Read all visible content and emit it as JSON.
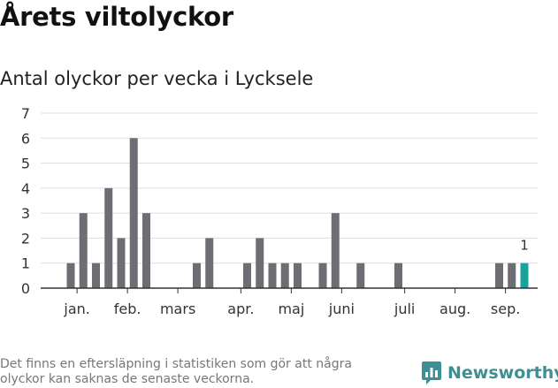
{
  "title": "Årets viltolyckor",
  "subtitle": "Antal olyckor per vecka i Lycksele",
  "footnote": "Det finns en eftersläpning i statistiken som gör att några olyckor kan saknas de senaste veckorna.",
  "brand": {
    "name": "Newsworthy",
    "icon": "newsworthy-logo-icon"
  },
  "colors": {
    "bar": "#6e6d74",
    "highlight": "#1aa39a",
    "grid": "#dddddd",
    "axis": "#333333",
    "text": "#333333"
  },
  "chart_data": {
    "type": "bar",
    "title": "Antal olyckor per vecka i Lycksele",
    "xlabel": "",
    "ylabel": "",
    "ylim": [
      0,
      7
    ],
    "yticks": [
      0,
      1,
      2,
      3,
      4,
      5,
      6,
      7
    ],
    "grid": true,
    "weeks": [
      1,
      2,
      3,
      4,
      5,
      6,
      7,
      8,
      9,
      10,
      11,
      12,
      13,
      14,
      15,
      16,
      17,
      18,
      19,
      20,
      21,
      22,
      23,
      24,
      25,
      26,
      27,
      28,
      29,
      30,
      31,
      32,
      33,
      34,
      35,
      36,
      37,
      38
    ],
    "values": [
      1,
      3,
      1,
      4,
      2,
      6,
      3,
      0,
      0,
      0,
      1,
      2,
      0,
      0,
      1,
      2,
      1,
      1,
      1,
      0,
      1,
      3,
      0,
      1,
      0,
      0,
      1,
      0,
      0,
      0,
      0,
      0,
      0,
      0,
      1,
      1,
      1,
      0
    ],
    "highlight_week": 37,
    "highlight_label": "1",
    "month_labels": [
      {
        "label": "jan.",
        "week": 1.5
      },
      {
        "label": "feb.",
        "week": 5.5
      },
      {
        "label": "mars",
        "week": 9.5
      },
      {
        "label": "apr.",
        "week": 14.5
      },
      {
        "label": "maj",
        "week": 18.5
      },
      {
        "label": "juni",
        "week": 22.5
      },
      {
        "label": "juli",
        "week": 27.5
      },
      {
        "label": "aug.",
        "week": 31.5
      },
      {
        "label": "sep.",
        "week": 35.5
      }
    ]
  }
}
